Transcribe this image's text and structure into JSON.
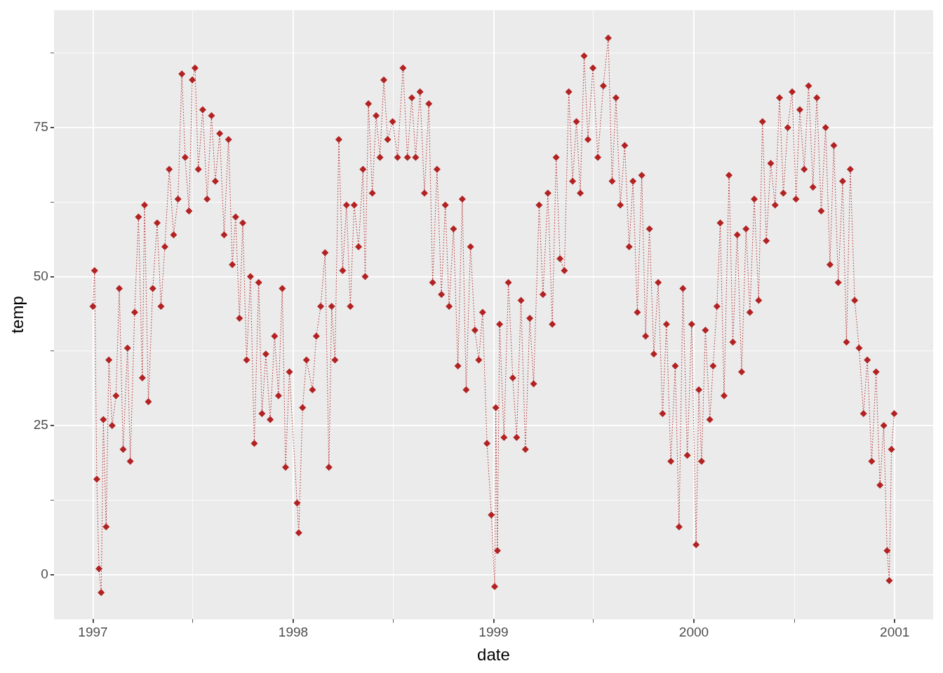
{
  "chart_data": {
    "type": "line",
    "xlabel": "date",
    "ylabel": "temp",
    "xlim": [
      "1996-10-22",
      "2001-03-12"
    ],
    "ylim": [
      -7.5,
      94.7
    ],
    "xticks": [
      "1997",
      {
        "value": "1997-07-02",
        "label": null
      },
      "1998",
      {
        "value": "1998-07-02",
        "label": null
      },
      "1999",
      {
        "value": "1999-07-02",
        "label": null
      },
      "2000",
      {
        "value": "2000-07-02",
        "label": null
      },
      "2001"
    ],
    "yticks": [
      0,
      {
        "value": 12.5,
        "label": null
      },
      25,
      {
        "value": 37.5,
        "label": null
      },
      50,
      {
        "value": 62.5,
        "label": null
      },
      75,
      {
        "value": 87.5,
        "label": null
      }
    ],
    "grid": true,
    "legend": false,
    "marker": "diamond",
    "line_style": "dotted",
    "x": [
      "1997-01-01",
      "1997-01-04",
      "1997-01-08",
      "1997-01-12",
      "1997-01-16",
      "1997-01-20",
      "1997-01-25",
      "1997-01-30",
      "1997-02-05",
      "1997-02-12",
      "1997-02-18",
      "1997-02-25",
      "1997-03-05",
      "1997-03-10",
      "1997-03-18",
      "1997-03-25",
      "1997-04-01",
      "1997-04-05",
      "1997-04-12",
      "1997-04-20",
      "1997-04-28",
      "1997-05-05",
      "1997-05-12",
      "1997-05-20",
      "1997-05-28",
      "1997-06-05",
      "1997-06-12",
      "1997-06-18",
      "1997-06-25",
      "1997-07-01",
      "1997-07-06",
      "1997-07-12",
      "1997-07-20",
      "1997-07-28",
      "1997-08-05",
      "1997-08-12",
      "1997-08-20",
      "1997-08-28",
      "1997-09-05",
      "1997-09-12",
      "1997-09-18",
      "1997-09-25",
      "1997-10-01",
      "1997-10-08",
      "1997-10-15",
      "1997-10-22",
      "1997-10-30",
      "1997-11-05",
      "1997-11-12",
      "1997-11-20",
      "1997-11-28",
      "1997-12-05",
      "1997-12-12",
      "1997-12-18",
      "1997-12-25",
      "1998-01-08",
      "1998-01-11",
      "1998-01-18",
      "1998-01-25",
      "1998-02-05",
      "1998-02-12",
      "1998-02-20",
      "1998-02-28",
      "1998-03-07",
      "1998-03-12",
      "1998-03-18",
      "1998-03-25",
      "1998-04-01",
      "1998-04-08",
      "1998-04-15",
      "1998-04-22",
      "1998-04-30",
      "1998-05-08",
      "1998-05-12",
      "1998-05-18",
      "1998-05-25",
      "1998-06-01",
      "1998-06-08",
      "1998-06-15",
      "1998-06-22",
      "1998-07-01",
      "1998-07-10",
      "1998-07-20",
      "1998-07-28",
      "1998-08-05",
      "1998-08-12",
      "1998-08-20",
      "1998-08-28",
      "1998-09-05",
      "1998-09-12",
      "1998-09-20",
      "1998-09-28",
      "1998-10-05",
      "1998-10-12",
      "1998-10-20",
      "1998-10-28",
      "1998-11-05",
      "1998-11-12",
      "1998-11-20",
      "1998-11-28",
      "1998-12-05",
      "1998-12-12",
      "1998-12-20",
      "1998-12-28",
      "1999-01-03",
      "1999-01-05",
      "1999-01-08",
      "1999-01-12",
      "1999-01-20",
      "1999-01-28",
      "1999-02-05",
      "1999-02-12",
      "1999-02-20",
      "1999-02-28",
      "1999-03-08",
      "1999-03-15",
      "1999-03-25",
      "1999-04-01",
      "1999-04-10",
      "1999-04-18",
      "1999-04-25",
      "1999-05-02",
      "1999-05-10",
      "1999-05-18",
      "1999-05-25",
      "1999-06-01",
      "1999-06-08",
      "1999-06-15",
      "1999-06-22",
      "1999-07-01",
      "1999-07-10",
      "1999-07-20",
      "1999-07-29",
      "1999-08-05",
      "1999-08-12",
      "1999-08-20",
      "1999-08-28",
      "1999-09-05",
      "1999-09-12",
      "1999-09-20",
      "1999-09-28",
      "1999-10-05",
      "1999-10-12",
      "1999-10-20",
      "1999-10-28",
      "1999-11-05",
      "1999-11-12",
      "1999-11-20",
      "1999-11-28",
      "1999-12-05",
      "1999-12-12",
      "1999-12-20",
      "1999-12-28",
      "2000-01-05",
      "2000-01-10",
      "2000-01-15",
      "2000-01-22",
      "2000-01-30",
      "2000-02-05",
      "2000-02-12",
      "2000-02-18",
      "2000-02-25",
      "2000-03-05",
      "2000-03-12",
      "2000-03-20",
      "2000-03-28",
      "2000-04-05",
      "2000-04-12",
      "2000-04-20",
      "2000-04-28",
      "2000-05-05",
      "2000-05-12",
      "2000-05-20",
      "2000-05-28",
      "2000-06-05",
      "2000-06-12",
      "2000-06-20",
      "2000-06-28",
      "2000-07-05",
      "2000-07-12",
      "2000-07-20",
      "2000-07-28",
      "2000-08-05",
      "2000-08-12",
      "2000-08-20",
      "2000-08-28",
      "2000-09-05",
      "2000-09-12",
      "2000-09-20",
      "2000-09-28",
      "2000-10-05",
      "2000-10-12",
      "2000-10-20",
      "2000-10-28",
      "2000-11-05",
      "2000-11-12",
      "2000-11-20",
      "2000-11-28",
      "2000-12-05",
      "2000-12-12",
      "2000-12-18",
      "2000-12-22",
      "2000-12-26",
      "2000-12-31"
    ],
    "series": [
      {
        "color": "#b22222",
        "values": [
          45,
          51,
          16,
          1,
          -3,
          26,
          8,
          36,
          25,
          30,
          48,
          21,
          38,
          19,
          44,
          60,
          33,
          62,
          29,
          48,
          59,
          45,
          55,
          68,
          57,
          63,
          84,
          70,
          61,
          83,
          85,
          68,
          78,
          63,
          77,
          66,
          74,
          57,
          73,
          52,
          60,
          43,
          59,
          36,
          50,
          22,
          49,
          27,
          37,
          26,
          40,
          30,
          48,
          18,
          34,
          12,
          7,
          28,
          36,
          31,
          40,
          45,
          54,
          18,
          45,
          36,
          73,
          51,
          62,
          45,
          62,
          55,
          68,
          50,
          79,
          64,
          77,
          70,
          83,
          73,
          76,
          70,
          85,
          70,
          80,
          70,
          81,
          64,
          79,
          49,
          68,
          47,
          62,
          45,
          58,
          35,
          63,
          31,
          55,
          41,
          36,
          44,
          22,
          10,
          -2,
          28,
          4,
          42,
          23,
          49,
          33,
          23,
          46,
          21,
          43,
          32,
          62,
          47,
          64,
          42,
          70,
          53,
          51,
          81,
          66,
          76,
          64,
          87,
          73,
          85,
          70,
          82,
          90,
          66,
          80,
          62,
          72,
          55,
          66,
          44,
          67,
          40,
          58,
          37,
          49,
          27,
          42,
          19,
          35,
          8,
          48,
          20,
          42,
          5,
          31,
          19,
          41,
          26,
          35,
          45,
          59,
          30,
          67,
          39,
          57,
          34,
          58,
          44,
          63,
          46,
          76,
          56,
          69,
          62,
          80,
          64,
          75,
          81,
          63,
          78,
          68,
          82,
          65,
          80,
          61,
          75,
          52,
          72,
          49,
          66,
          39,
          68,
          46,
          38,
          27,
          36,
          19,
          34,
          15,
          25,
          4,
          -1,
          21,
          27
        ]
      }
    ]
  }
}
